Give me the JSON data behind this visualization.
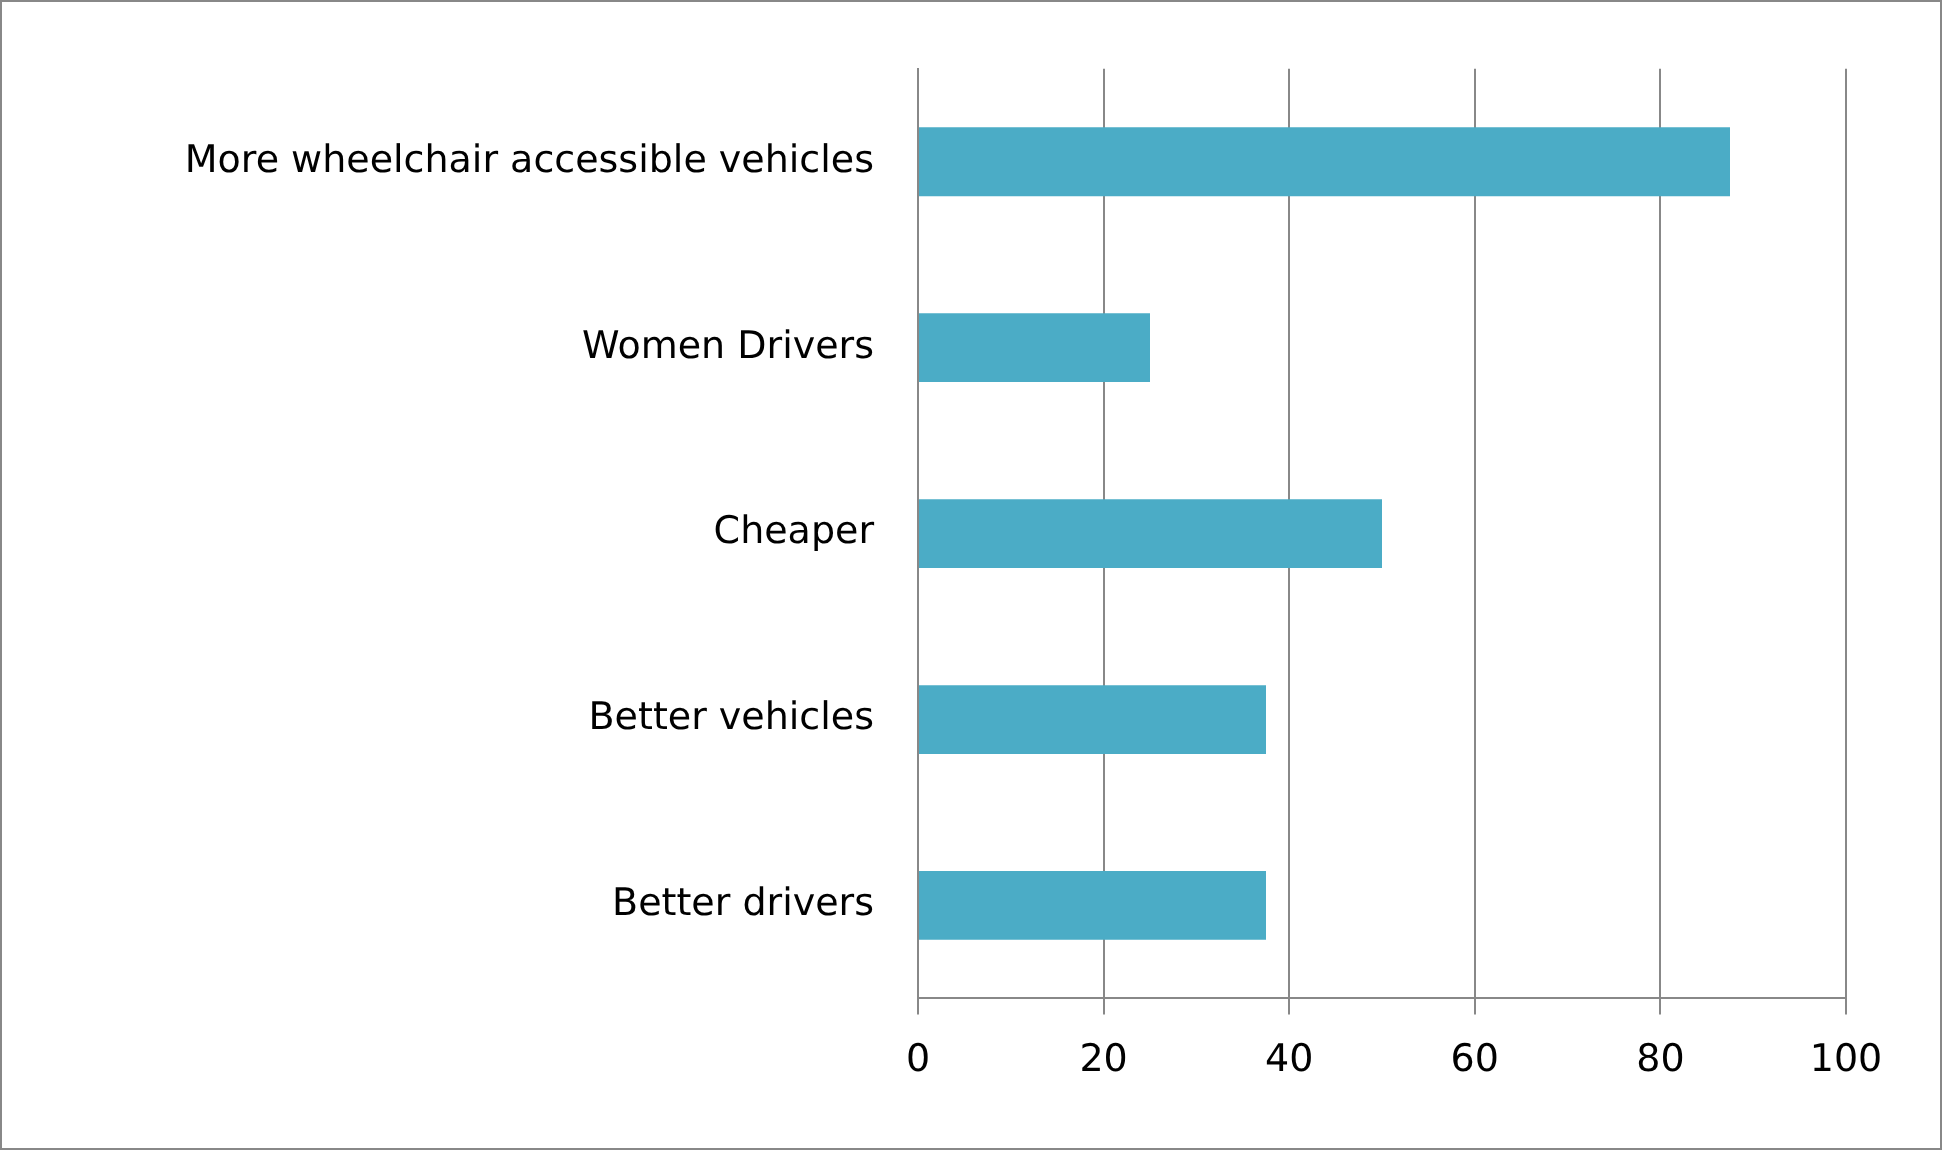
{
  "chart_data": {
    "type": "bar",
    "orientation": "horizontal",
    "categories": [
      "More wheelchair accessible vehicles",
      "Women Drivers",
      "Cheaper",
      "Better vehicles",
      "Better drivers"
    ],
    "values": [
      87.5,
      25,
      50,
      37.5,
      37.5
    ],
    "color": "#4bacc6",
    "xlim": [
      0,
      100
    ],
    "xticks": [
      0,
      20,
      40,
      60,
      80,
      100
    ],
    "grid": "x",
    "legend": false
  }
}
